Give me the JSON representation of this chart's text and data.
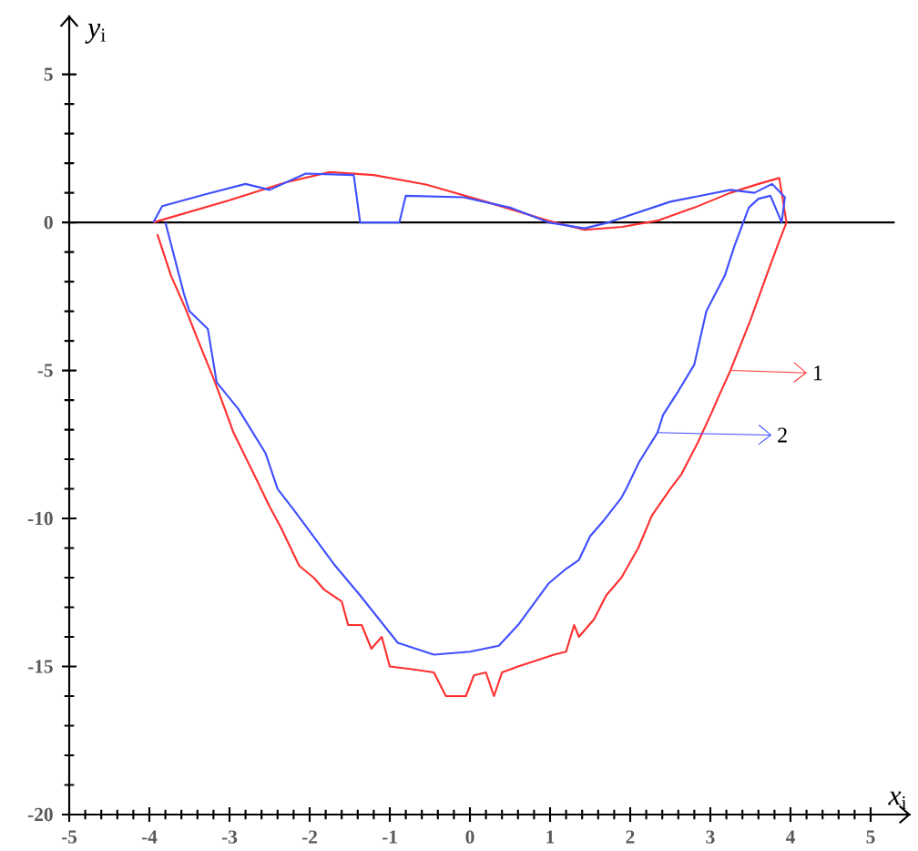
{
  "chart_data": {
    "type": "line",
    "xlabel": "*x*$_{i}$",
    "ylabel": "*y*$_{i}$",
    "xlim": [
      -5,
      5.5
    ],
    "ylim": [
      -20,
      7
    ],
    "xticks": [
      -5,
      -4,
      -3,
      -2,
      -1,
      0,
      1,
      2,
      3,
      4,
      5
    ],
    "yticks": [
      -20,
      -15,
      -10,
      -5,
      0,
      5
    ],
    "grid": false,
    "legend": "right",
    "marker": "none",
    "line_style": "solid",
    "ref_lines": [
      {
        "axis": "y",
        "value": 0,
        "color": "#000000"
      }
    ],
    "series": [
      {
        "name": "1",
        "color": "#ff3030",
        "x": [
          -3.95,
          -3.0,
          -2.3,
          -1.75,
          -1.2,
          -0.55,
          0.2,
          0.98,
          1.43,
          1.9,
          2.34,
          2.8,
          3.25,
          3.6,
          3.86,
          3.95,
          3.85,
          3.7,
          3.5,
          3.25,
          3.1,
          3.02,
          2.85,
          2.64,
          2.5,
          2.27,
          2.1,
          1.89,
          1.7,
          1.55,
          1.36,
          1.3,
          1.2,
          1.05,
          0.6,
          0.4,
          0.3,
          0.2,
          0.05,
          -0.05,
          -0.3,
          -0.45,
          -0.7,
          -1.0,
          -1.1,
          -1.23,
          -1.35,
          -1.52,
          -1.6,
          -1.82,
          -1.95,
          -2.13,
          -2.36,
          -2.5,
          -2.66,
          -2.95,
          -3.18,
          -3.39,
          -3.55,
          -3.73,
          -3.9
        ],
        "values": [
          0,
          0.75,
          1.35,
          1.7,
          1.6,
          1.28,
          0.7,
          0.06,
          -0.25,
          -0.15,
          0.06,
          0.5,
          1.0,
          1.3,
          1.5,
          0,
          -0.7,
          -1.8,
          -3.3,
          -5.0,
          -5.9,
          -6.4,
          -7.4,
          -8.5,
          -9.0,
          -9.9,
          -11.0,
          -12.0,
          -12.6,
          -13.4,
          -14.0,
          -13.6,
          -14.5,
          -14.6,
          -15.0,
          -15.2,
          -16.0,
          -15.2,
          -15.3,
          -16.0,
          -16.0,
          -15.2,
          -15.1,
          -15.0,
          -14.0,
          -14.4,
          -13.6,
          -13.6,
          -12.8,
          -12.4,
          -12.0,
          -11.6,
          -10.3,
          -9.6,
          -8.7,
          -7.1,
          -5.4,
          -4.0,
          -2.9,
          -1.8,
          -0.4
        ]
      },
      {
        "name": "2",
        "color": "#3f4fff",
        "x": [
          -3.95,
          -3.84,
          -3.3,
          -2.8,
          -2.5,
          -2.05,
          -1.45,
          -1.37,
          -0.88,
          -0.8,
          -0.08,
          0.5,
          0.98,
          1.43,
          1.73,
          2.5,
          3.25,
          3.55,
          3.77,
          3.93,
          3.89,
          3.75,
          3.6,
          3.48,
          3.3,
          3.18,
          2.95,
          2.8,
          2.6,
          2.41,
          2.34,
          2.11,
          1.95,
          1.89,
          1.66,
          1.5,
          1.36,
          1.2,
          0.98,
          0.6,
          0.36,
          0,
          -0.45,
          -0.9,
          -1.37,
          -1.68,
          -1.98,
          -2.2,
          -2.4,
          -2.55,
          -2.89,
          -3.16,
          -3.27,
          -3.5,
          -3.57,
          -3.8
        ],
        "values": [
          0,
          0.55,
          0.95,
          1.3,
          1.1,
          1.65,
          1.6,
          0,
          0,
          0.9,
          0.85,
          0.5,
          0,
          -0.2,
          0,
          0.7,
          1.1,
          1.0,
          1.3,
          0.85,
          0,
          0.9,
          0.8,
          0.5,
          -0.8,
          -1.8,
          -3.0,
          -4.8,
          -5.7,
          -6.5,
          -7.1,
          -8.1,
          -9.0,
          -9.3,
          -10.1,
          -10.6,
          -11.4,
          -11.7,
          -12.2,
          -13.6,
          -14.3,
          -14.5,
          -14.6,
          -14.2,
          -12.6,
          -11.6,
          -10.5,
          -9.7,
          -9.0,
          -7.8,
          -6.3,
          -5.4,
          -3.6,
          -3.0,
          -2.4,
          0
        ]
      }
    ]
  }
}
